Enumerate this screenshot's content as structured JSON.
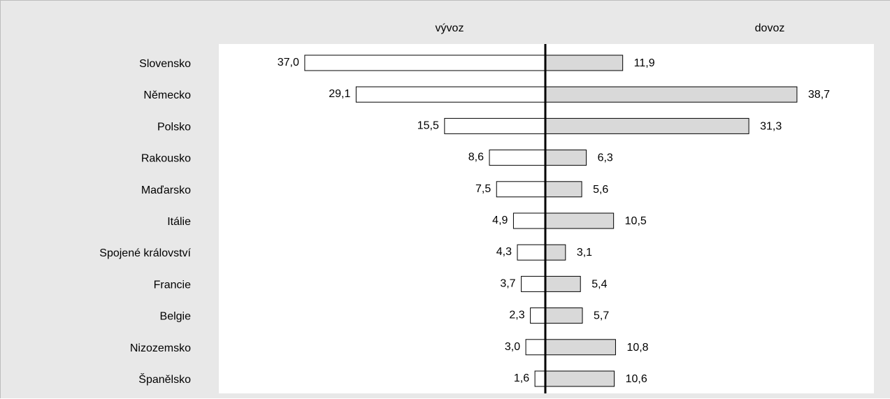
{
  "chart_data": {
    "type": "bar",
    "orientation": "horizontal-diverging",
    "headers": {
      "left": "vývoz",
      "right": "dovoz"
    },
    "categories": [
      "Slovensko",
      "Německo",
      "Polsko",
      "Rakousko",
      "Maďarsko",
      "Itálie",
      "Spojené království",
      "Francie",
      "Belgie",
      "Nizozemsko",
      "Španělsko"
    ],
    "series": [
      {
        "values": [
          37.0,
          29.1,
          15.5,
          8.6,
          7.5,
          4.9,
          4.3,
          3.7,
          2.3,
          3.0,
          1.6
        ],
        "labels": [
          "37,0",
          "29,1",
          "15,5",
          "8,6",
          "7,5",
          "4,9",
          "4,3",
          "3,7",
          "2,3",
          "3,0",
          "1,6"
        ],
        "color": "#ffffff"
      },
      {
        "values": [
          11.9,
          38.7,
          31.3,
          6.3,
          5.6,
          10.5,
          3.1,
          5.4,
          5.7,
          10.8,
          10.6
        ],
        "labels": [
          "11,9",
          "38,7",
          "31,3",
          "6,3",
          "5,6",
          "10,5",
          "3,1",
          "5,4",
          "5,7",
          "10,8",
          "10,6"
        ],
        "color": "#d9d9d9"
      }
    ],
    "grid": false,
    "legend": "none"
  }
}
